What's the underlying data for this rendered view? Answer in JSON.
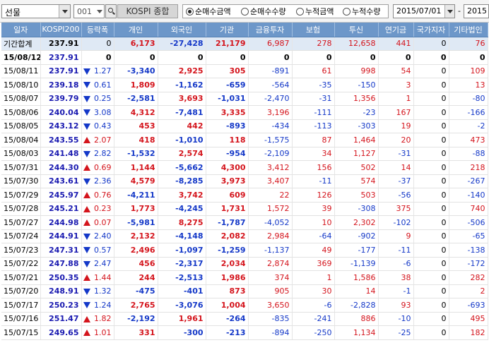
{
  "toolbar": {
    "market_select": "선물",
    "code": "001",
    "index_name": "KOSPI 종합",
    "radio_options": [
      {
        "label": "순매수금액",
        "checked": true
      },
      {
        "label": "순매수수량",
        "checked": false
      },
      {
        "label": "누적금액",
        "checked": false
      },
      {
        "label": "누적수량",
        "checked": false
      }
    ],
    "date_from": "2015/07/01",
    "date_sep": "-",
    "date_to": "2015"
  },
  "table": {
    "headers": [
      "일자",
      "KOSPI200",
      "등락폭",
      "개인",
      "외국인",
      "기관",
      "금융투자",
      "보험",
      "투신",
      "연기금",
      "국가지자",
      "기타법인"
    ],
    "summary": {
      "date": "기간합계",
      "kospi": "237.91",
      "change": "0",
      "dir": "",
      "individual": "6,173",
      "foreign": "-27,428",
      "institution": "21,179",
      "financial": "6,987",
      "insurance": "278",
      "trust": "12,658",
      "pension": "441",
      "state": "0",
      "other": "76"
    },
    "rows": [
      {
        "date": "15/08/12",
        "kospi": "237.91",
        "change": "0",
        "dir": "",
        "individual": "0",
        "foreign": "0",
        "institution": "0",
        "financial": "0",
        "insurance": "0",
        "trust": "0",
        "pension": "0",
        "state": "0",
        "other": "0"
      },
      {
        "date": "15/08/11",
        "kospi": "237.91",
        "change": "1.27",
        "dir": "down",
        "individual": "-3,340",
        "foreign": "2,925",
        "institution": "305",
        "financial": "-891",
        "insurance": "61",
        "trust": "998",
        "pension": "54",
        "state": "0",
        "other": "109"
      },
      {
        "date": "15/08/10",
        "kospi": "239.18",
        "change": "0.61",
        "dir": "down",
        "individual": "1,809",
        "foreign": "-1,162",
        "institution": "-659",
        "financial": "-564",
        "insurance": "-35",
        "trust": "-150",
        "pension": "3",
        "state": "0",
        "other": "13"
      },
      {
        "date": "15/08/07",
        "kospi": "239.79",
        "change": "0.25",
        "dir": "down",
        "individual": "-2,581",
        "foreign": "3,693",
        "institution": "-1,031",
        "financial": "-2,470",
        "insurance": "-31",
        "trust": "1,356",
        "pension": "1",
        "state": "0",
        "other": "-80"
      },
      {
        "date": "15/08/06",
        "kospi": "240.04",
        "change": "3.08",
        "dir": "down",
        "individual": "4,312",
        "foreign": "-7,481",
        "institution": "3,335",
        "financial": "3,196",
        "insurance": "-111",
        "trust": "-23",
        "pension": "167",
        "state": "0",
        "other": "-166"
      },
      {
        "date": "15/08/05",
        "kospi": "243.12",
        "change": "0.43",
        "dir": "down",
        "individual": "453",
        "foreign": "442",
        "institution": "-893",
        "financial": "-434",
        "insurance": "-113",
        "trust": "-303",
        "pension": "19",
        "state": "0",
        "other": "-2"
      },
      {
        "date": "15/08/04",
        "kospi": "243.55",
        "change": "2.07",
        "dir": "up",
        "individual": "418",
        "foreign": "-1,010",
        "institution": "118",
        "financial": "-1,575",
        "insurance": "87",
        "trust": "1,464",
        "pension": "20",
        "state": "0",
        "other": "473"
      },
      {
        "date": "15/08/03",
        "kospi": "241.48",
        "change": "2.82",
        "dir": "down",
        "individual": "-1,532",
        "foreign": "2,574",
        "institution": "-954",
        "financial": "-2,109",
        "insurance": "34",
        "trust": "1,127",
        "pension": "-31",
        "state": "0",
        "other": "-88"
      },
      {
        "date": "15/07/31",
        "kospi": "244.30",
        "change": "0.69",
        "dir": "up",
        "individual": "1,144",
        "foreign": "-5,662",
        "institution": "4,300",
        "financial": "3,412",
        "insurance": "156",
        "trust": "502",
        "pension": "14",
        "state": "0",
        "other": "218"
      },
      {
        "date": "15/07/30",
        "kospi": "243.61",
        "change": "2.36",
        "dir": "down",
        "individual": "4,579",
        "foreign": "-8,285",
        "institution": "3,973",
        "financial": "3,407",
        "insurance": "-11",
        "trust": "574",
        "pension": "-37",
        "state": "0",
        "other": "-267"
      },
      {
        "date": "15/07/29",
        "kospi": "245.97",
        "change": "0.76",
        "dir": "up",
        "individual": "-4,211",
        "foreign": "3,742",
        "institution": "609",
        "financial": "22",
        "insurance": "126",
        "trust": "503",
        "pension": "-56",
        "state": "0",
        "other": "-140"
      },
      {
        "date": "15/07/28",
        "kospi": "245.21",
        "change": "0.23",
        "dir": "up",
        "individual": "1,773",
        "foreign": "-4,245",
        "institution": "1,731",
        "financial": "1,572",
        "insurance": "39",
        "trust": "-308",
        "pension": "375",
        "state": "0",
        "other": "740"
      },
      {
        "date": "15/07/27",
        "kospi": "244.98",
        "change": "0.07",
        "dir": "up",
        "individual": "-5,981",
        "foreign": "8,275",
        "institution": "-1,787",
        "financial": "-4,052",
        "insurance": "10",
        "trust": "2,302",
        "pension": "-102",
        "state": "0",
        "other": "-506"
      },
      {
        "date": "15/07/24",
        "kospi": "244.91",
        "change": "2.40",
        "dir": "down",
        "individual": "2,132",
        "foreign": "-4,148",
        "institution": "2,082",
        "financial": "2,984",
        "insurance": "-64",
        "trust": "-902",
        "pension": "9",
        "state": "0",
        "other": "-65"
      },
      {
        "date": "15/07/23",
        "kospi": "247.31",
        "change": "0.57",
        "dir": "down",
        "individual": "2,496",
        "foreign": "-1,097",
        "institution": "-1,259",
        "financial": "-1,137",
        "insurance": "49",
        "trust": "-177",
        "pension": "-11",
        "state": "0",
        "other": "-138"
      },
      {
        "date": "15/07/22",
        "kospi": "247.88",
        "change": "2.47",
        "dir": "down",
        "individual": "456",
        "foreign": "-2,317",
        "institution": "2,034",
        "financial": "2,874",
        "insurance": "369",
        "trust": "-1,139",
        "pension": "-6",
        "state": "0",
        "other": "-172"
      },
      {
        "date": "15/07/21",
        "kospi": "250.35",
        "change": "1.44",
        "dir": "up",
        "individual": "244",
        "foreign": "-2,513",
        "institution": "1,986",
        "financial": "374",
        "insurance": "1",
        "trust": "1,586",
        "pension": "38",
        "state": "0",
        "other": "282"
      },
      {
        "date": "15/07/20",
        "kospi": "248.91",
        "change": "1.32",
        "dir": "down",
        "individual": "-475",
        "foreign": "-401",
        "institution": "873",
        "financial": "905",
        "insurance": "30",
        "trust": "14",
        "pension": "-1",
        "state": "0",
        "other": "2"
      },
      {
        "date": "15/07/17",
        "kospi": "250.23",
        "change": "1.24",
        "dir": "down",
        "individual": "2,765",
        "foreign": "-3,076",
        "institution": "1,004",
        "financial": "3,650",
        "insurance": "-6",
        "trust": "-2,828",
        "pension": "93",
        "state": "0",
        "other": "-693"
      },
      {
        "date": "15/07/16",
        "kospi": "251.47",
        "change": "1.82",
        "dir": "up",
        "individual": "-2,192",
        "foreign": "1,961",
        "institution": "-264",
        "financial": "-835",
        "insurance": "-241",
        "trust": "886",
        "pension": "-10",
        "state": "0",
        "other": "495"
      },
      {
        "date": "15/07/15",
        "kospi": "249.65",
        "change": "1.01",
        "dir": "up",
        "individual": "331",
        "foreign": "-300",
        "institution": "-213",
        "financial": "-894",
        "insurance": "-250",
        "trust": "1,134",
        "pension": "-25",
        "state": "0",
        "other": "182"
      }
    ]
  },
  "colors": {
    "header_bg": "#6d97c9",
    "positive": "#d4141c",
    "negative": "#1438c8",
    "summary_bg": "#dfe9f5"
  }
}
